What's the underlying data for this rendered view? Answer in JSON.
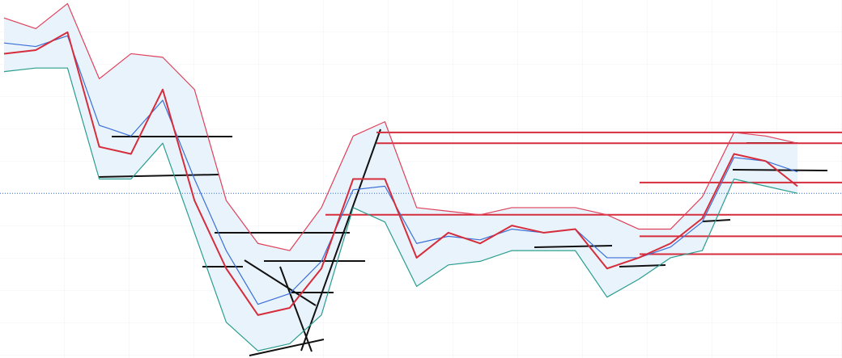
{
  "chart_data": {
    "type": "line",
    "ylim": [
      0,
      100
    ],
    "series": [
      {
        "color": "#e0405a",
        "values": [
          95,
          92,
          99,
          78,
          85,
          84,
          75,
          44,
          32,
          30,
          42,
          62,
          66,
          42,
          41,
          40,
          42,
          42,
          42,
          40,
          36,
          36,
          45,
          63,
          62,
          60
        ]
      },
      {
        "color": "#2a9d8f",
        "values": [
          80,
          81,
          81,
          50,
          50,
          60,
          35,
          10,
          2,
          4,
          12,
          42,
          38,
          20,
          26,
          27,
          30,
          30,
          30,
          17,
          22,
          28,
          30,
          50,
          48,
          46
        ]
      },
      {
        "color": "#3a6fd8",
        "values": [
          88,
          87,
          90,
          65,
          62,
          72,
          50,
          30,
          15,
          18,
          27,
          47,
          48,
          32,
          34,
          33,
          36,
          35,
          36,
          28,
          28,
          31,
          38,
          56,
          55,
          52
        ]
      },
      {
        "color": "#d62d3c",
        "values": [
          85,
          86,
          91,
          59,
          57,
          75,
          44,
          25,
          12,
          14,
          25,
          50,
          50,
          28,
          35,
          32,
          37,
          35,
          36,
          25,
          28,
          32,
          39,
          57,
          55,
          48
        ]
      }
    ],
    "band_fill": "#e9f3fb",
    "hlines": {
      "color": "#d62d3c",
      "values": [
        63,
        60,
        49,
        40,
        34,
        29
      ]
    },
    "last_price_line": {
      "color": "#3a6fd8",
      "value": 46
    }
  }
}
